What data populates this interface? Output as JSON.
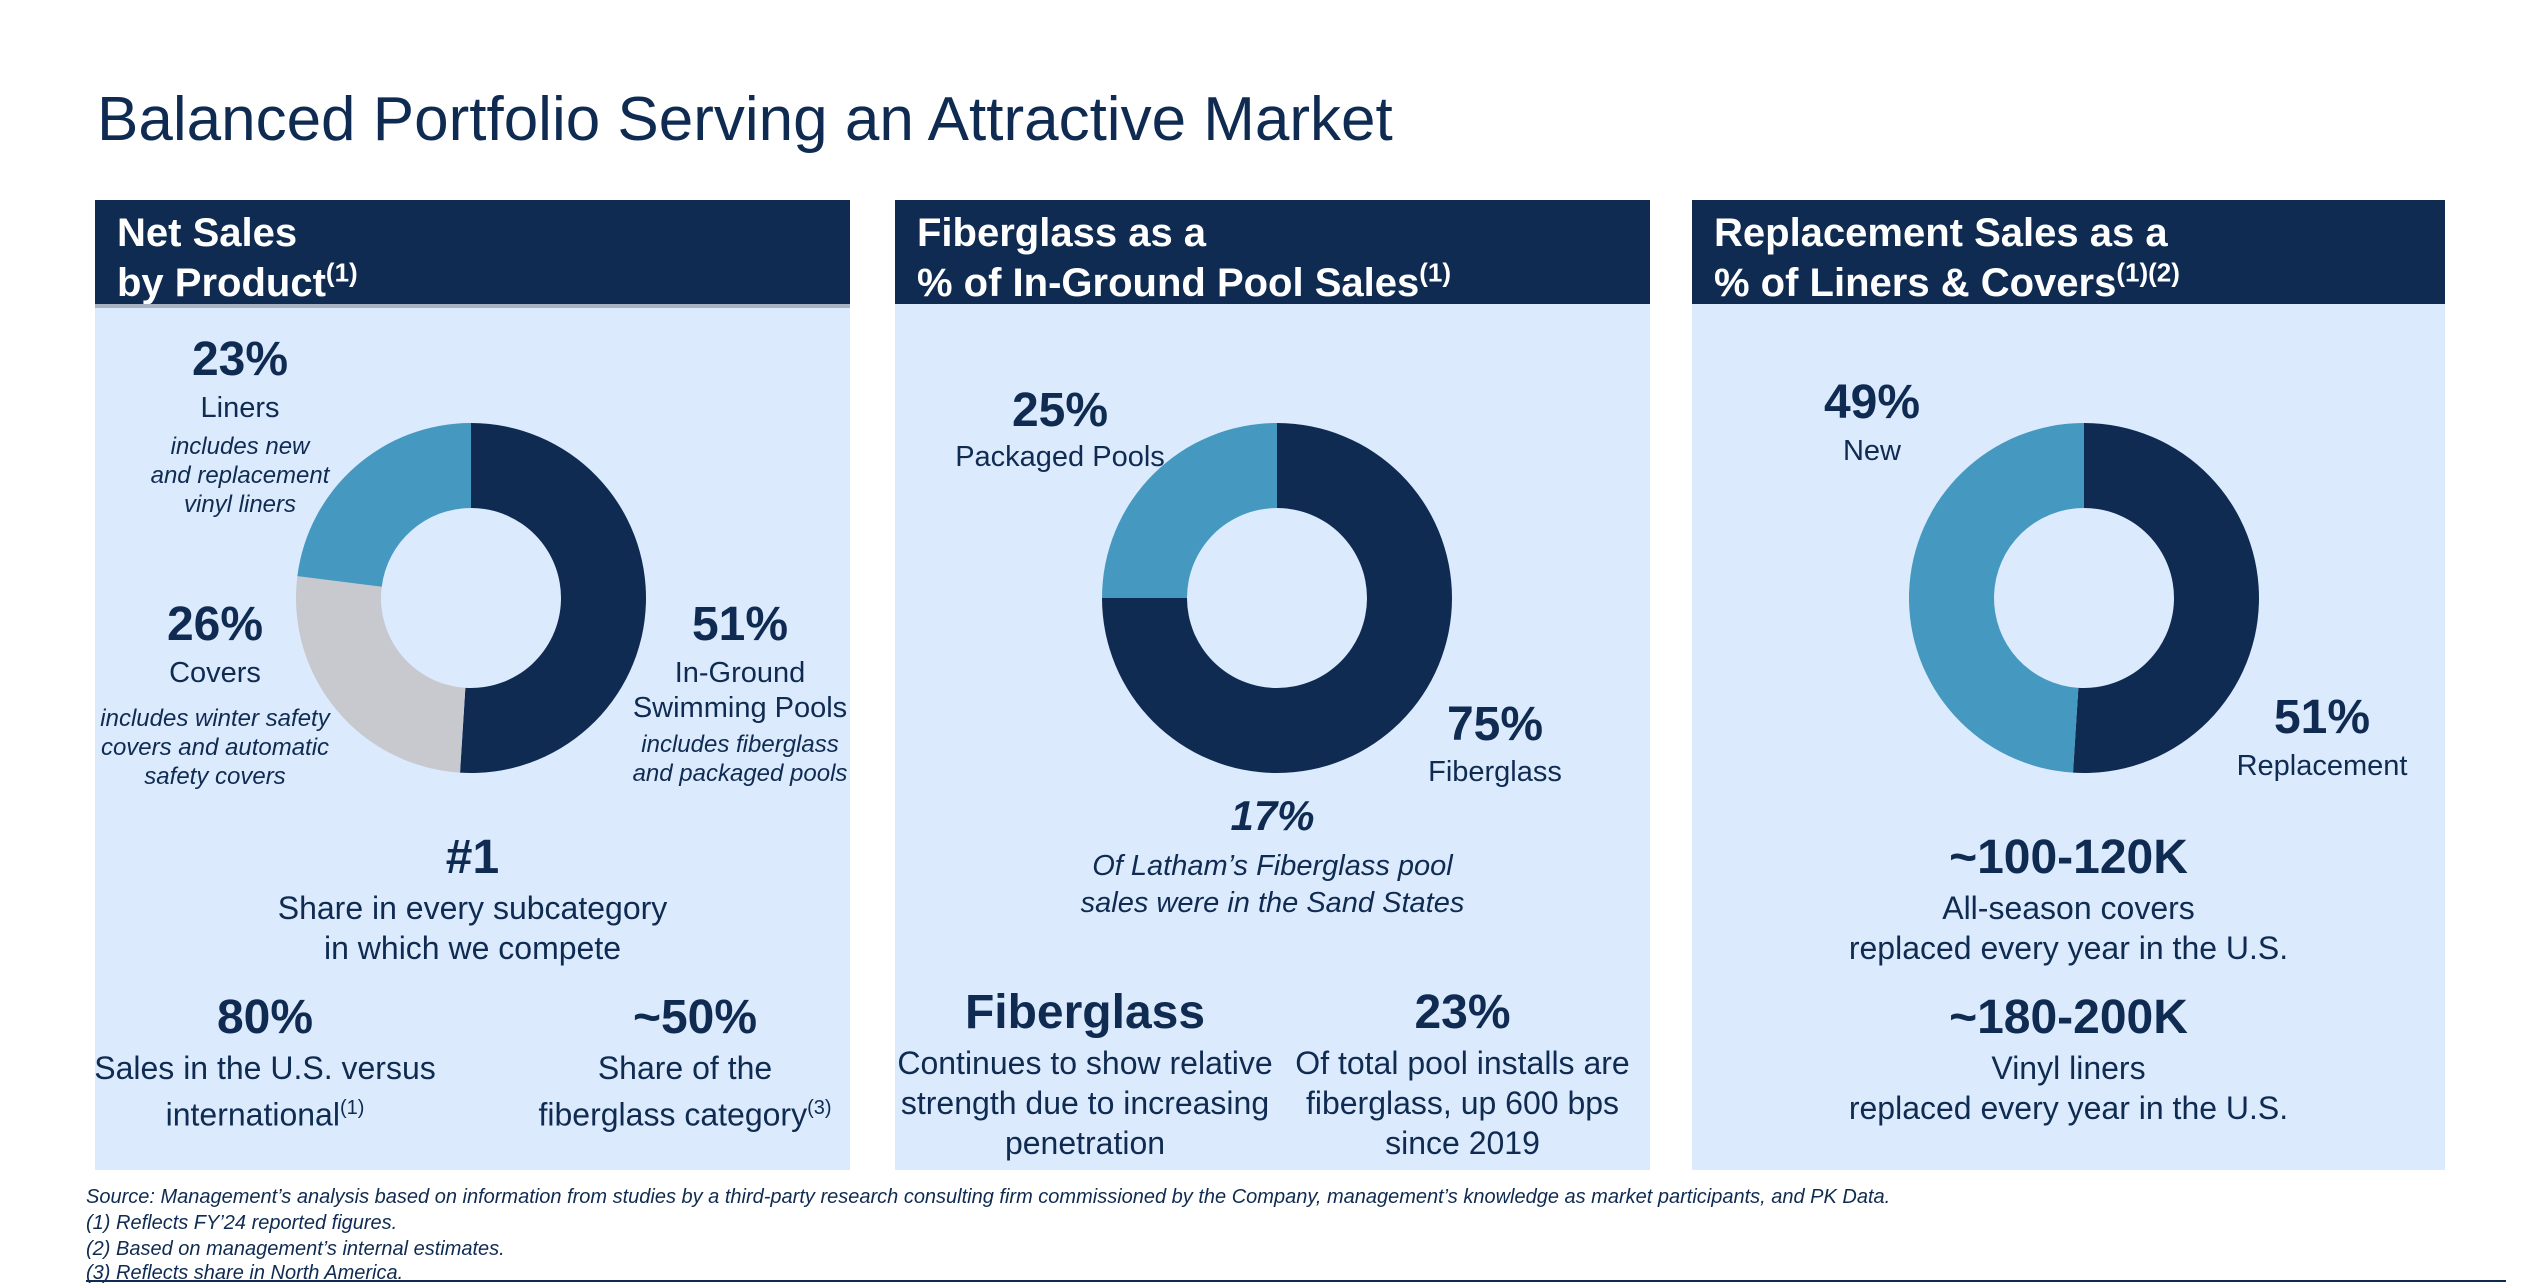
{
  "title": "Balanced Portfolio Serving an Attractive Market",
  "panels": [
    {
      "header_line1": "Net Sales",
      "header_line2": "by Product",
      "header_sup": "(1)",
      "labels": {
        "liners_pct": "23%",
        "liners_name": "Liners",
        "liners_note_1": "includes new",
        "liners_note_2": "and replacement",
        "liners_note_3": "vinyl liners",
        "covers_pct": "26%",
        "covers_name": "Covers",
        "covers_note_1": "includes winter safety",
        "covers_note_2": "covers and automatic",
        "covers_note_3": "safety covers",
        "pools_pct": "51%",
        "pools_name_1": "In-Ground",
        "pools_name_2": "Swimming Pools",
        "pools_note_1": "includes fiberglass",
        "pools_note_2": "and packaged pools"
      },
      "stats": {
        "rank": "#1",
        "rank_desc_1": "Share in every subcategory",
        "rank_desc_2": "in which we compete",
        "us_value": "80%",
        "us_desc_1": "Sales in the U.S. versus",
        "us_desc_2": "international",
        "us_sup": "(1)",
        "fg_value": "~50%",
        "fg_desc_1": "Share of the",
        "fg_desc_2": "fiberglass category",
        "fg_sup": "(3)"
      }
    },
    {
      "header_line1": "Fiberglass as a",
      "header_line2": "% of In-Ground Pool Sales",
      "header_sup": "(1)",
      "labels": {
        "packaged_pct": "25%",
        "packaged_name": "Packaged Pools",
        "fiberglass_pct": "75%",
        "fiberglass_name": "Fiberglass",
        "sand_pct": "17%",
        "sand_desc_1": "Of Latham’s Fiberglass pool",
        "sand_desc_2": "sales were in the Sand States"
      },
      "stats": {
        "fg_title": "Fiberglass",
        "fg_desc_1": "Continues to show relative",
        "fg_desc_2": "strength due to increasing",
        "fg_desc_3": "penetration",
        "installs_value": "23%",
        "installs_desc_1": "Of total pool installs are",
        "installs_desc_2": "fiberglass, up 600 bps",
        "installs_desc_3": "since 2019"
      }
    },
    {
      "header_line1": "Replacement Sales as a",
      "header_line2": "% of Liners & Covers",
      "header_sup": "(1)(2)",
      "labels": {
        "new_pct": "49%",
        "new_name": "New",
        "repl_pct": "51%",
        "repl_name": "Replacement"
      },
      "stats": {
        "covers_value": "~100-120K",
        "covers_desc_1": "All-season covers",
        "covers_desc_2": "replaced every year in the U.S.",
        "liners_value": "~180-200K",
        "liners_desc_1": "Vinyl liners",
        "liners_desc_2": "replaced every year in the U.S."
      }
    }
  ],
  "chart_data": [
    {
      "type": "pie",
      "categories": [
        "In-Ground Swimming Pools",
        "Covers",
        "Liners"
      ],
      "values": [
        51,
        26,
        23
      ],
      "colors": [
        "#0f2b52",
        "#c8c9ce",
        "#4598bf"
      ],
      "hole": "donut"
    },
    {
      "type": "pie",
      "categories": [
        "Fiberglass",
        "Packaged Pools"
      ],
      "values": [
        75,
        25
      ],
      "colors": [
        "#0f2b52",
        "#4598bf"
      ],
      "hole": "donut"
    },
    {
      "type": "pie",
      "categories": [
        "Replacement",
        "New"
      ],
      "values": [
        51,
        49
      ],
      "colors": [
        "#0f2b52",
        "#4598bf"
      ],
      "hole": "donut"
    }
  ],
  "footnotes": {
    "source": "Source: Management’s analysis based on information from studies by a third-party research consulting firm commissioned by the Company, management’s knowledge as market participants, and PK Data.",
    "note1": "(1) Reflects FY’24 reported figures.",
    "note2": "(2) Based on management’s internal estimates.",
    "note3": "(3) Reflects share in North America."
  }
}
